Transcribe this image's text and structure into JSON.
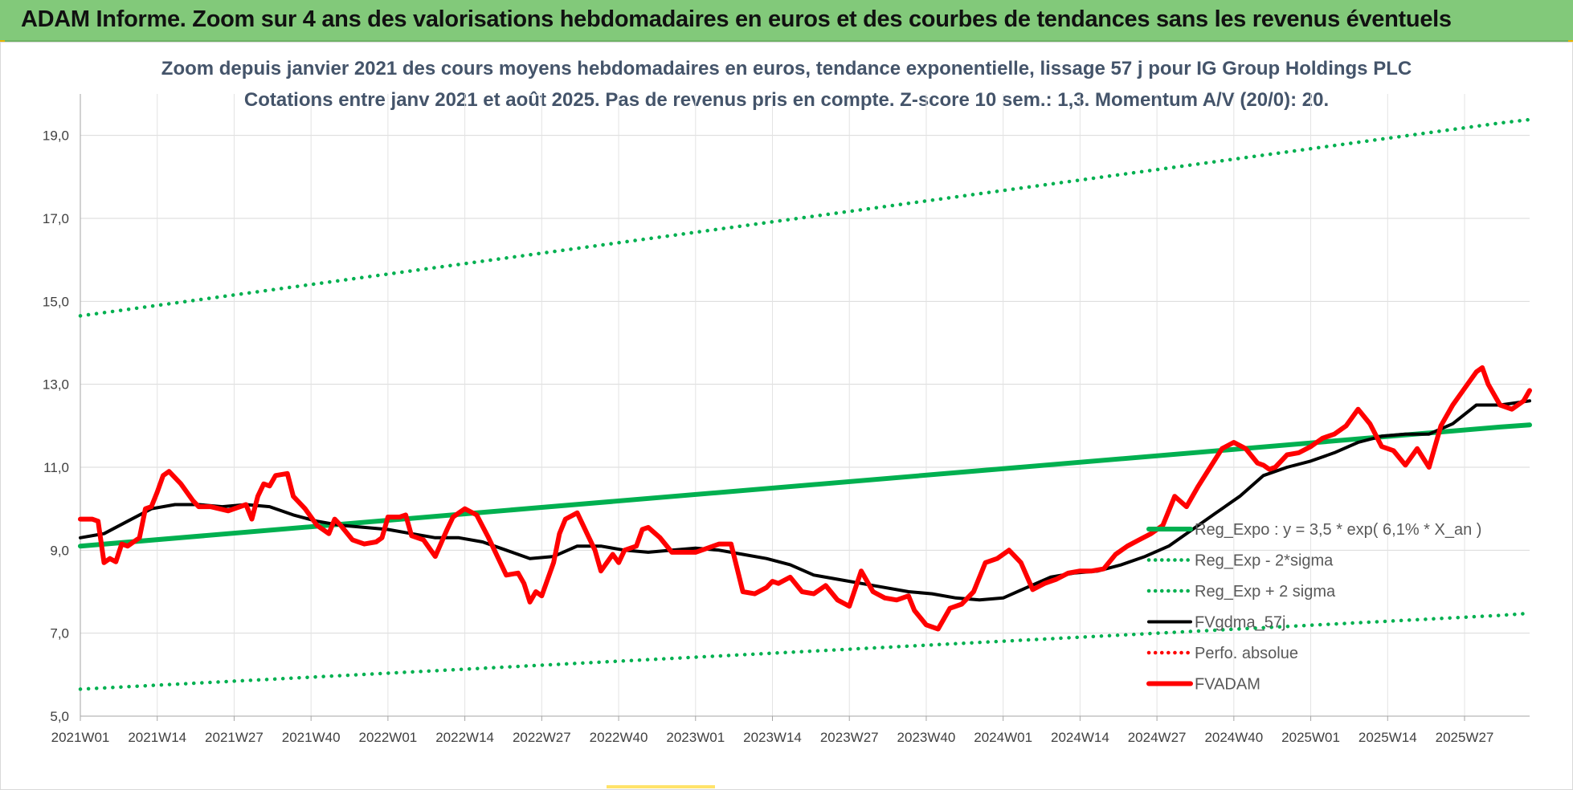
{
  "page": {
    "banner_title": "ADAM Informe. Zoom sur 4 ans des valorisations hebdomadaires en euros et des courbes de tendances sans les revenus éventuels"
  },
  "chart_data": {
    "type": "line",
    "title": "Zoom depuis janvier 2021 des cours moyens hebdomadaires en euros, tendance exponentielle, lissage 57 j pour IG Group Holdings PLC",
    "subtitle": "Cotations entre janv 2021 et août 2025.  Pas de revenus pris en compte. Z-score 10 sem.: 1,3. Momentum A/V (20/0): 20.",
    "xlabel": "",
    "ylabel": "",
    "ylim": [
      5,
      20
    ],
    "yticks": [
      "5,0",
      "7,0",
      "9,0",
      "11,0",
      "13,0",
      "15,0",
      "17,0",
      "19,0"
    ],
    "ytick_values": [
      5,
      7,
      9,
      11,
      13,
      15,
      17,
      19
    ],
    "xticks": [
      "2021W01",
      "2021W14",
      "2021W27",
      "2021W40",
      "2022W01",
      "2022W14",
      "2022W27",
      "2022W40",
      "2023W01",
      "2023W14",
      "2023W27",
      "2023W40",
      "2024W01",
      "2024W14",
      "2024W27",
      "2024W40",
      "2025W01",
      "2025W14",
      "2025W27"
    ],
    "x_weeks_per_tick": 13,
    "grid": true,
    "legend_position": "right",
    "series": [
      {
        "name": "Reg_Expo : y = 3,5 * exp( 6,1% *  X_an )",
        "style": "solid",
        "color": "#00b050",
        "x": [
          0,
          240,
          245
        ],
        "y": [
          9.1,
          11.97,
          12.02
        ]
      },
      {
        "name": "Reg_Exp - 2*sigma",
        "style": "dotted",
        "color": "#00b050",
        "x": [
          0,
          240,
          245
        ],
        "y": [
          5.65,
          7.43,
          7.48
        ]
      },
      {
        "name": "Reg_Exp + 2 sigma",
        "style": "dotted",
        "color": "#00b050",
        "x": [
          0,
          240,
          245
        ],
        "y": [
          14.65,
          19.3,
          19.38
        ]
      },
      {
        "name": "FVgdma_57j",
        "style": "solid",
        "color": "#000000",
        "x": [
          0,
          4,
          8,
          12,
          16,
          20,
          24,
          28,
          32,
          36,
          40,
          44,
          48,
          52,
          56,
          60,
          64,
          68,
          72,
          76,
          80,
          84,
          88,
          92,
          96,
          100,
          104,
          108,
          112,
          116,
          120,
          124,
          128,
          132,
          136,
          140,
          144,
          148,
          152,
          156,
          160,
          164,
          168,
          172,
          176,
          180,
          184,
          188,
          192,
          196,
          200,
          204,
          208,
          212,
          216,
          220,
          224,
          228,
          232,
          236,
          240,
          245
        ],
        "y": [
          9.3,
          9.4,
          9.7,
          10.0,
          10.1,
          10.1,
          10.05,
          10.1,
          10.05,
          9.85,
          9.7,
          9.6,
          9.55,
          9.5,
          9.4,
          9.3,
          9.3,
          9.2,
          9.0,
          8.8,
          8.85,
          9.1,
          9.1,
          9.0,
          8.95,
          9.0,
          9.05,
          9.0,
          8.9,
          8.8,
          8.65,
          8.4,
          8.3,
          8.2,
          8.1,
          8.0,
          7.95,
          7.85,
          7.8,
          7.85,
          8.1,
          8.35,
          8.45,
          8.5,
          8.65,
          8.85,
          9.1,
          9.5,
          9.9,
          10.3,
          10.8,
          11.0,
          11.15,
          11.35,
          11.6,
          11.75,
          11.8,
          11.8,
          12.05,
          12.5,
          12.5,
          12.6
        ]
      },
      {
        "name": "Perfo. absolue",
        "style": "dotted",
        "color": "#ff0000",
        "x": [],
        "y": []
      },
      {
        "name": "FVADAM",
        "style": "solid",
        "color": "#ff0000",
        "x": [
          0,
          2,
          3,
          4,
          5,
          6,
          7,
          8,
          10,
          11,
          12,
          13,
          14,
          15,
          17,
          19,
          20,
          22,
          25,
          28,
          29,
          30,
          31,
          32,
          33,
          35,
          36,
          38,
          40,
          42,
          43,
          44,
          46,
          48,
          50,
          51,
          52,
          54,
          55,
          56,
          58,
          60,
          62,
          63,
          64,
          65,
          67,
          69,
          72,
          74,
          75,
          76,
          77,
          78,
          80,
          81,
          82,
          84,
          86,
          87,
          88,
          90,
          91,
          92,
          94,
          95,
          96,
          98,
          100,
          102,
          104,
          106,
          108,
          110,
          112,
          114,
          116,
          117,
          118,
          120,
          122,
          124,
          126,
          128,
          130,
          132,
          134,
          136,
          138,
          140,
          141,
          143,
          145,
          147,
          149,
          151,
          153,
          155,
          157,
          159,
          161,
          163,
          165,
          167,
          169,
          171,
          173,
          175,
          177,
          179,
          181,
          183,
          185,
          187,
          189,
          191,
          193,
          195,
          197,
          199,
          200,
          201,
          202,
          204,
          206,
          208,
          210,
          212,
          214,
          216,
          218,
          220,
          222,
          224,
          226,
          228,
          230,
          232,
          234,
          236,
          237,
          238,
          240,
          242,
          244,
          245
        ],
        "y": [
          9.75,
          9.75,
          9.7,
          8.7,
          8.8,
          8.72,
          9.15,
          9.1,
          9.3,
          10.0,
          10.05,
          10.4,
          10.8,
          10.9,
          10.6,
          10.2,
          10.05,
          10.05,
          9.95,
          10.1,
          9.75,
          10.3,
          10.6,
          10.55,
          10.8,
          10.85,
          10.3,
          10.0,
          9.6,
          9.4,
          9.75,
          9.6,
          9.25,
          9.15,
          9.2,
          9.3,
          9.8,
          9.8,
          9.85,
          9.35,
          9.25,
          8.85,
          9.5,
          9.8,
          9.9,
          10.0,
          9.85,
          9.3,
          8.4,
          8.45,
          8.2,
          7.75,
          8.0,
          7.9,
          8.7,
          9.4,
          9.75,
          9.9,
          9.3,
          9.0,
          8.5,
          8.9,
          8.7,
          9.0,
          9.1,
          9.5,
          9.55,
          9.3,
          8.95,
          8.95,
          8.95,
          9.05,
          9.15,
          9.15,
          8.0,
          7.95,
          8.1,
          8.25,
          8.2,
          8.35,
          8.0,
          7.95,
          8.15,
          7.8,
          7.65,
          8.5,
          8.0,
          7.85,
          7.8,
          7.9,
          7.55,
          7.2,
          7.1,
          7.6,
          7.7,
          8.0,
          8.7,
          8.8,
          9.0,
          8.7,
          8.05,
          8.2,
          8.3,
          8.45,
          8.5,
          8.5,
          8.55,
          8.9,
          9.1,
          9.25,
          9.4,
          9.6,
          10.3,
          10.05,
          10.55,
          11.0,
          11.45,
          11.6,
          11.45,
          11.1,
          11.05,
          10.95,
          11.0,
          11.3,
          11.35,
          11.5,
          11.7,
          11.8,
          12.0,
          12.4,
          12.05,
          11.5,
          11.4,
          11.05,
          11.45,
          11.0,
          12.0,
          12.5,
          12.9,
          13.3,
          13.4,
          13.0,
          12.5,
          12.4,
          12.6,
          12.85
        ]
      }
    ]
  }
}
